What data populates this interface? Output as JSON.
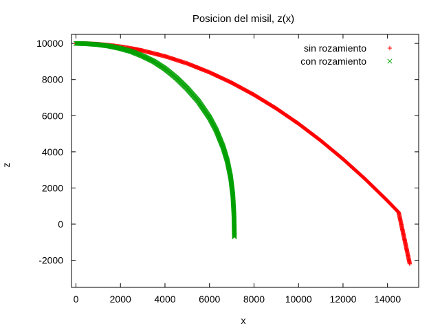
{
  "chart_data": {
    "type": "scatter",
    "title": "Posicion del misil, z(x)",
    "xlabel": "x",
    "ylabel": "z",
    "xlim": [
      -200,
      15400
    ],
    "ylim": [
      -3500,
      10500
    ],
    "xticks": [
      0,
      2000,
      4000,
      6000,
      8000,
      10000,
      12000,
      14000
    ],
    "yticks": [
      -2000,
      0,
      2000,
      4000,
      6000,
      8000,
      10000
    ],
    "grid": false,
    "legend_position": "top-right",
    "series": [
      {
        "name": "sin rozamiento",
        "color": "#ff0000",
        "marker": "plus",
        "x": [
          0,
          500,
          1000,
          1500,
          2000,
          2500,
          3000,
          4000,
          5000,
          6000,
          7000,
          8000,
          9000,
          10000,
          11000,
          12000,
          13000,
          14000,
          14500,
          15000
        ],
        "y": [
          10000,
          9989,
          9956,
          9900,
          9822,
          9722,
          9600,
          9289,
          8889,
          8400,
          7822,
          7156,
          6400,
          5556,
          4622,
          3600,
          2489,
          1289,
          653,
          -2200
        ]
      },
      {
        "name": "con rozamiento",
        "color": "#00a000",
        "marker": "cross",
        "x": [
          0,
          500,
          1000,
          1500,
          2000,
          2500,
          3000,
          3500,
          4000,
          4500,
          5000,
          5500,
          6000,
          6300,
          6600,
          6800,
          6950,
          7050,
          7100,
          7120
        ],
        "y": [
          10000,
          9980,
          9930,
          9850,
          9720,
          9550,
          9300,
          9000,
          8600,
          8100,
          7500,
          6800,
          5900,
          5200,
          4300,
          3500,
          2600,
          1600,
          500,
          -700
        ]
      }
    ]
  }
}
